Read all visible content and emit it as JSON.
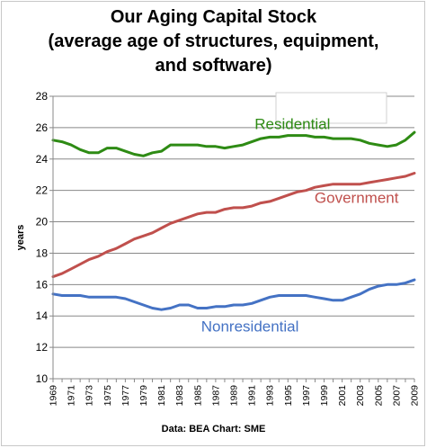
{
  "chart_data": {
    "type": "line",
    "title_lines": [
      "Our Aging Capital Stock",
      "(average age of structures, equipment,",
      "and software)"
    ],
    "xlabel": "",
    "ylabel": "years",
    "source": "Data: BEA  Chart: SME",
    "xlim": [
      1969,
      2009
    ],
    "ylim": [
      10,
      28
    ],
    "yticks": [
      10,
      12,
      14,
      16,
      18,
      20,
      22,
      24,
      26,
      28
    ],
    "xticks": [
      1969,
      1971,
      1973,
      1975,
      1977,
      1979,
      1981,
      1983,
      1985,
      1987,
      1989,
      1991,
      1993,
      1995,
      1997,
      1999,
      2001,
      2003,
      2005,
      2007,
      2009
    ],
    "grid": true,
    "legend": "none",
    "x": [
      1969,
      1970,
      1971,
      1972,
      1973,
      1974,
      1975,
      1976,
      1977,
      1978,
      1979,
      1980,
      1981,
      1982,
      1983,
      1984,
      1985,
      1986,
      1987,
      1988,
      1989,
      1990,
      1991,
      1992,
      1993,
      1994,
      1995,
      1996,
      1997,
      1998,
      1999,
      2000,
      2001,
      2002,
      2003,
      2004,
      2005,
      2006,
      2007,
      2008,
      2009
    ],
    "series": [
      {
        "name": "Residential",
        "color": "#2e8b14",
        "label_year": 1995.5,
        "label_value": 25.9,
        "values": [
          25.2,
          25.1,
          24.9,
          24.6,
          24.4,
          24.4,
          24.7,
          24.7,
          24.5,
          24.3,
          24.2,
          24.4,
          24.5,
          24.9,
          24.9,
          24.9,
          24.9,
          24.8,
          24.8,
          24.7,
          24.8,
          24.9,
          25.1,
          25.3,
          25.4,
          25.4,
          25.5,
          25.5,
          25.5,
          25.4,
          25.4,
          25.3,
          25.3,
          25.3,
          25.2,
          25.0,
          24.9,
          24.8,
          24.9,
          25.2,
          25.7
        ]
      },
      {
        "name": "Government",
        "color": "#c0504d",
        "label_year": 2002.6,
        "label_value": 21.2,
        "values": [
          16.5,
          16.7,
          17.0,
          17.3,
          17.6,
          17.8,
          18.1,
          18.3,
          18.6,
          18.9,
          19.1,
          19.3,
          19.6,
          19.9,
          20.1,
          20.3,
          20.5,
          20.6,
          20.6,
          20.8,
          20.9,
          20.9,
          21.0,
          21.2,
          21.3,
          21.5,
          21.7,
          21.9,
          22.0,
          22.2,
          22.3,
          22.4,
          22.4,
          22.4,
          22.4,
          22.5,
          22.6,
          22.7,
          22.8,
          22.9,
          23.1
        ]
      },
      {
        "name": "Nonresidential",
        "color": "#4472c4",
        "label_year": 1990.8,
        "label_value": 13.0,
        "values": [
          15.4,
          15.3,
          15.3,
          15.3,
          15.2,
          15.2,
          15.2,
          15.2,
          15.1,
          14.9,
          14.7,
          14.5,
          14.4,
          14.5,
          14.7,
          14.7,
          14.5,
          14.5,
          14.6,
          14.6,
          14.7,
          14.7,
          14.8,
          15.0,
          15.2,
          15.3,
          15.3,
          15.3,
          15.3,
          15.2,
          15.1,
          15.0,
          15.0,
          15.2,
          15.4,
          15.7,
          15.9,
          16.0,
          16.0,
          16.1,
          16.3
        ]
      }
    ]
  }
}
